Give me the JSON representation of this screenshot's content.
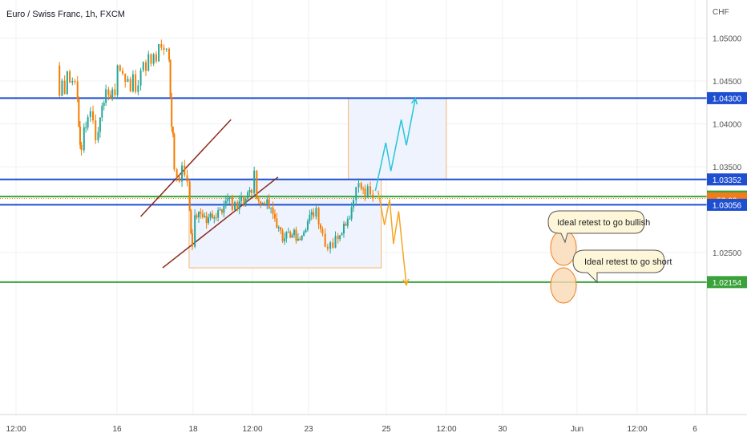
{
  "header": {
    "title": "Euro / Swiss Franc, 1h, FXCM"
  },
  "price_axis": {
    "currency": "CHF",
    "ticks": [
      "1.05000",
      "1.04500",
      "1.04000",
      "1.03500",
      "1.02500"
    ],
    "tick_values": [
      1.05,
      1.045,
      1.04,
      1.035,
      1.025
    ]
  },
  "time_axis": {
    "labels": [
      "12:00",
      "16",
      "18",
      "12:00",
      "23",
      "25",
      "12:00",
      "30",
      "Jun",
      "12:00",
      "6"
    ],
    "positions": [
      0,
      1,
      2,
      3,
      4,
      5,
      6,
      7,
      8,
      9,
      10
    ]
  },
  "price_labels": [
    {
      "id": "level-1.04300",
      "text": "1.04300",
      "value": 1.043,
      "color": "#1e4fd1"
    },
    {
      "id": "level-1.03352",
      "text": "1.03352",
      "value": 1.03352,
      "color": "#1e4fd1"
    },
    {
      "id": "level-1.03152",
      "text": "1.03152",
      "value": 1.03152,
      "color": "#3aa23a"
    },
    {
      "id": "current-price",
      "text": "1.03130",
      "value": 1.0313,
      "color": "#f07d1c"
    },
    {
      "id": "countdown",
      "text": "52:09",
      "value": 1.0311,
      "color": "#f07d1c"
    },
    {
      "id": "level-1.03056",
      "text": "1.03056",
      "value": 1.03056,
      "color": "#1e4fd1"
    },
    {
      "id": "level-1.02154",
      "text": "1.02154",
      "value": 1.02154,
      "color": "#3aa23a"
    }
  ],
  "annotations": {
    "bullish": "Ideal retest to go bullish",
    "short": "Ideal retest to go short"
  },
  "colors": {
    "bull": "#26a69a",
    "bear": "#f57c00",
    "support_resistance": "#1e4fd1",
    "green_level": "#3aa23a",
    "channel": "#8b2a1a",
    "projection_bull": "#26c6da",
    "projection_bear": "#f5a623",
    "zone_fill": "#eef3fd",
    "zone_border": "#f7b56c",
    "callout_fill": "#fdf6d9"
  },
  "chart_data": {
    "type": "candlestick",
    "title": "Euro / Swiss Franc, 1h, FXCM",
    "ylabel": "CHF",
    "ylim": [
      1.0196,
      1.0532
    ],
    "horizontal_levels": [
      1.043,
      1.03352,
      1.03152,
      1.03056,
      1.02154
    ],
    "current_price": 1.0313,
    "price_path": [
      [
        0,
        1.0468
      ],
      [
        0.04,
        1.0432
      ],
      [
        0.08,
        1.0455
      ],
      [
        0.12,
        1.0438
      ],
      [
        0.16,
        1.0462
      ],
      [
        0.2,
        1.0448
      ],
      [
        0.24,
        1.0455
      ],
      [
        0.28,
        1.0445
      ],
      [
        0.32,
        1.0428
      ],
      [
        0.34,
        1.0398
      ],
      [
        0.36,
        1.0378
      ],
      [
        0.38,
        1.0366
      ],
      [
        0.42,
        1.0394
      ],
      [
        0.48,
        1.0408
      ],
      [
        0.52,
        1.0418
      ],
      [
        0.56,
        1.0402
      ],
      [
        0.6,
        1.0385
      ],
      [
        0.64,
        1.039
      ],
      [
        0.7,
        1.0425
      ],
      [
        0.76,
        1.0435
      ],
      [
        0.8,
        1.0428
      ],
      [
        0.86,
        1.0441
      ],
      [
        0.9,
        1.0428
      ],
      [
        0.94,
        1.0472
      ],
      [
        0.98,
        1.0463
      ],
      [
        1.02,
        1.0458
      ],
      [
        1.06,
        1.0447
      ],
      [
        1.1,
        1.0455
      ],
      [
        1.14,
        1.0442
      ],
      [
        1.18,
        1.0452
      ],
      [
        1.22,
        1.0438
      ],
      [
        1.26,
        1.0448
      ],
      [
        1.3,
        1.0462
      ],
      [
        1.34,
        1.0474
      ],
      [
        1.38,
        1.0466
      ],
      [
        1.42,
        1.0478
      ],
      [
        1.46,
        1.0472
      ],
      [
        1.5,
        1.0483
      ],
      [
        1.54,
        1.0478
      ],
      [
        1.58,
        1.0488
      ],
      [
        1.62,
        1.0492
      ],
      [
        1.66,
        1.0482
      ],
      [
        1.7,
        1.0488
      ],
      [
        1.74,
        1.0478
      ],
      [
        1.76,
        1.043
      ],
      [
        1.78,
        1.0398
      ],
      [
        1.8,
        1.0385
      ],
      [
        1.82,
        1.0345
      ],
      [
        1.86,
        1.0342
      ],
      [
        1.9,
        1.0336
      ],
      [
        1.94,
        1.0352
      ],
      [
        1.98,
        1.0345
      ],
      [
        2.02,
        1.0338
      ],
      [
        2.06,
        1.03
      ],
      [
        2.08,
        1.027
      ],
      [
        2.1,
        1.0255
      ],
      [
        2.14,
        1.0288
      ],
      [
        2.2,
        1.0298
      ],
      [
        2.26,
        1.0292
      ],
      [
        2.32,
        1.0285
      ],
      [
        2.38,
        1.0298
      ],
      [
        2.44,
        1.0288
      ],
      [
        2.5,
        1.0302
      ],
      [
        2.56,
        1.0292
      ],
      [
        2.62,
        1.0305
      ],
      [
        2.68,
        1.0312
      ],
      [
        2.72,
        1.0298
      ],
      [
        2.76,
        1.0308
      ],
      [
        2.8,
        1.0306
      ],
      [
        2.86,
        1.0318
      ],
      [
        2.9,
        1.031
      ],
      [
        2.96,
        1.0318
      ],
      [
        3.02,
        1.0322
      ],
      [
        3.06,
        1.034
      ],
      [
        3.1,
        1.0318
      ],
      [
        3.16,
        1.0305
      ],
      [
        3.22,
        1.0312
      ],
      [
        3.26,
        1.0306
      ],
      [
        3.32,
        1.0298
      ],
      [
        3.38,
        1.029
      ],
      [
        3.44,
        1.0276
      ],
      [
        3.5,
        1.0266
      ],
      [
        3.56,
        1.0278
      ],
      [
        3.62,
        1.0265
      ],
      [
        3.68,
        1.0272
      ],
      [
        3.74,
        1.0262
      ],
      [
        3.8,
        1.0275
      ],
      [
        3.86,
        1.0282
      ],
      [
        3.92,
        1.029
      ],
      [
        3.98,
        1.0296
      ],
      [
        4.02,
        1.0302
      ],
      [
        4.06,
        1.0288
      ],
      [
        4.12,
        1.0272
      ],
      [
        4.16,
        1.0262
      ],
      [
        4.2,
        1.0256
      ],
      [
        4.24,
        1.0265
      ],
      [
        4.28,
        1.0258
      ],
      [
        4.32,
        1.0266
      ],
      [
        4.36,
        1.027
      ],
      [
        4.42,
        1.0278
      ],
      [
        4.48,
        1.0286
      ],
      [
        4.54,
        1.0294
      ],
      [
        4.6,
        1.0312
      ],
      [
        4.64,
        1.0332
      ],
      [
        4.68,
        1.0328
      ],
      [
        4.72,
        1.0325
      ],
      [
        4.78,
        1.0318
      ],
      [
        4.82,
        1.0322
      ],
      [
        4.86,
        1.0315
      ],
      [
        4.9,
        1.0313
      ]
    ],
    "channel": {
      "upper": [
        [
          1.3,
          1.0292
        ],
        [
          2.7,
          1.0405
        ]
      ],
      "lower": [
        [
          1.64,
          1.0232
        ],
        [
          3.43,
          1.0338
        ]
      ]
    },
    "projection_bullish": [
      [
        4.94,
        1.0322
      ],
      [
        5.1,
        1.0378
      ],
      [
        5.18,
        1.0345
      ],
      [
        5.34,
        1.0405
      ],
      [
        5.42,
        1.0375
      ],
      [
        5.56,
        1.043
      ]
    ],
    "projection_short": [
      [
        4.98,
        1.0322
      ],
      [
        5.08,
        1.0282
      ],
      [
        5.16,
        1.0312
      ],
      [
        5.22,
        1.026
      ],
      [
        5.3,
        1.0298
      ],
      [
        5.42,
        1.0212
      ]
    ],
    "zones": [
      {
        "label": "target-zone",
        "x": [
          4.52,
          6.04
        ],
        "y": [
          1.03352,
          1.043
        ]
      },
      {
        "label": "range-box",
        "x": [
          2.05,
          5.03
        ],
        "y": [
          1.0232,
          1.03352
        ]
      }
    ]
  }
}
